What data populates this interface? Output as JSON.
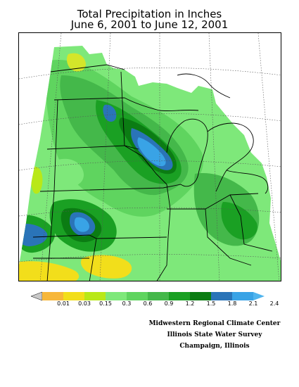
{
  "title": {
    "line1": "Total Precipitation in Inches",
    "line2": "June 6, 2001 to June 12, 2001"
  },
  "legend": {
    "labels": [
      "0.01",
      "0.03",
      "0.15",
      "0.3",
      "0.6",
      "0.9",
      "1.2",
      "1.5",
      "1.8",
      "2.1",
      "2.4"
    ],
    "colors": [
      "#f7b73a",
      "#f2de1b",
      "#b9e818",
      "#7ee87a",
      "#5fd45f",
      "#44b84a",
      "#1aa023",
      "#0b7c13",
      "#2a74b8",
      "#39a3e6"
    ],
    "below_min_color": "#c8c8c8",
    "above_max_color": "#4fb4ee"
  },
  "map": {
    "no_data_color": "#ffffff",
    "boundary_color": "#000000"
  },
  "credit": {
    "line1": "Midwestern Regional Climate Center",
    "line2": "Illinois State Water Survey",
    "line3": "Champaign, Illinois"
  }
}
